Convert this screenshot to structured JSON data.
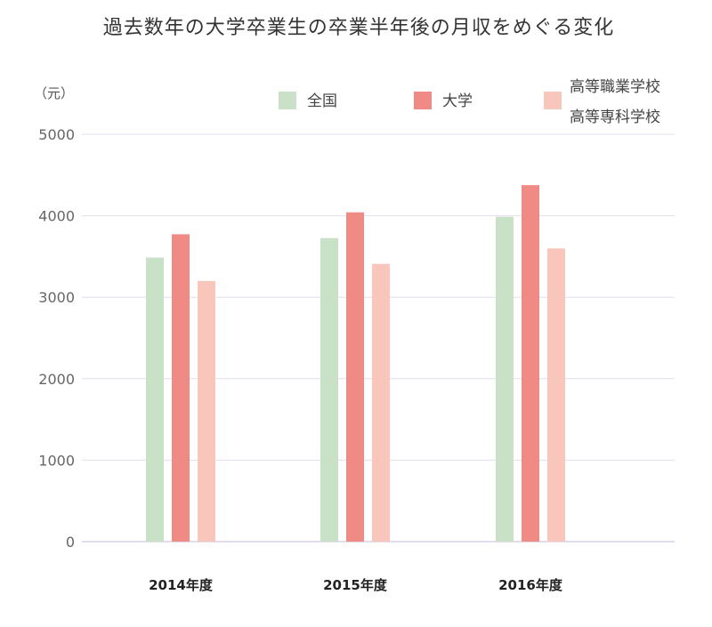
{
  "chart_data": {
    "type": "bar",
    "title": "過去数年の大学卒業生の卒業半年後の月収をめぐる変化",
    "ylabel": "（元）",
    "xlabel": "",
    "ylim": [
      0,
      5000
    ],
    "yticks": [
      0,
      1000,
      2000,
      3000,
      4000,
      5000
    ],
    "grid": true,
    "legend_position": "top",
    "categories": [
      "2014年度",
      "2015年度",
      "2016年度"
    ],
    "series": [
      {
        "name": "全国",
        "color": "#c8e1c7",
        "values": [
          3487,
          3726,
          3988
        ]
      },
      {
        "name": "大学",
        "color": "#f08a84",
        "values": [
          3773,
          4042,
          4376
        ]
      },
      {
        "name_lines": [
          "高等職業学校",
          "高等専科学校"
        ],
        "color": "#f8c6ba",
        "values": [
          3200,
          3409,
          3599
        ]
      }
    ]
  }
}
